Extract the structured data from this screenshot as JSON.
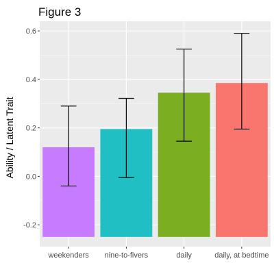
{
  "chart_data": {
    "type": "bar",
    "title": "Figure 3",
    "xlabel": "",
    "ylabel": "Ability / Latent Trait",
    "categories": [
      "weekenders",
      "nine-to-fivers",
      "daily",
      "daily, at bedtime"
    ],
    "values": [
      0.12,
      0.195,
      0.345,
      0.385
    ],
    "error_lower": [
      -0.04,
      -0.005,
      0.145,
      0.195
    ],
    "error_upper": [
      0.29,
      0.322,
      0.525,
      0.59
    ],
    "bar_baseline": -0.25,
    "colors": [
      "#C77CFF",
      "#1FBFC4",
      "#7CAE22",
      "#F8766D"
    ],
    "ylim": [
      -0.29,
      0.64
    ],
    "yticks": [
      -0.2,
      0.0,
      0.2,
      0.4,
      0.6
    ],
    "ytick_labels": [
      "-0.2",
      "0.0",
      "0.2",
      "0.4",
      "0.6"
    ],
    "grid": true,
    "legend": "none"
  }
}
